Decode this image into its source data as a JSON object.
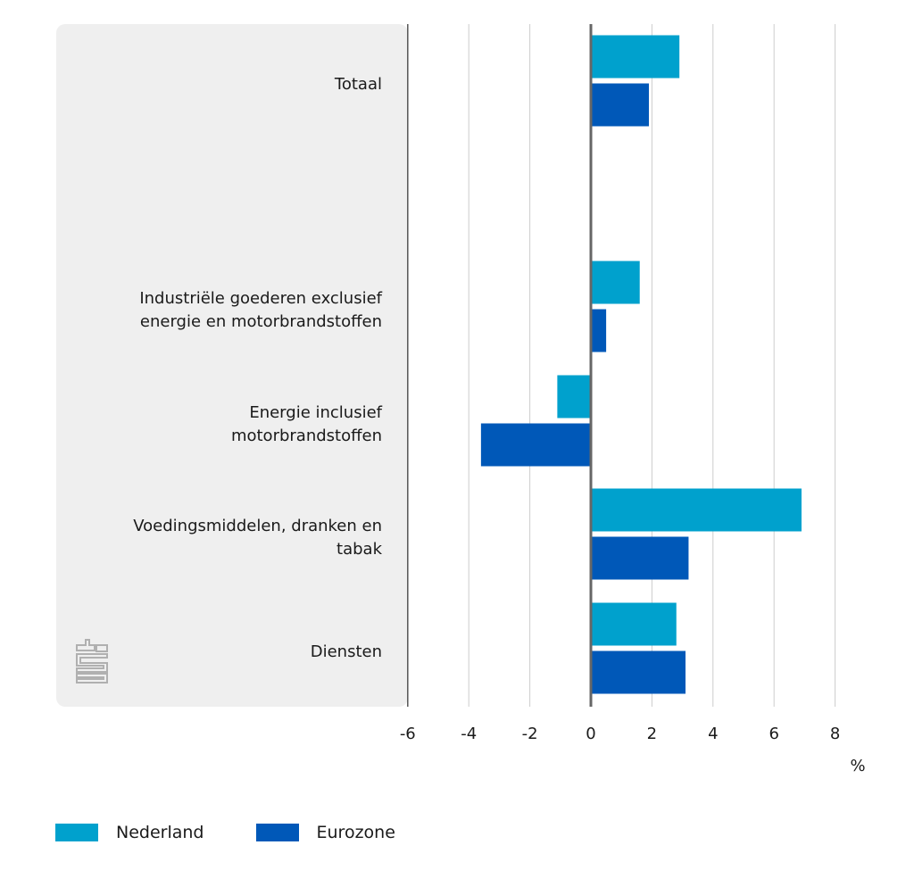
{
  "chart_data": {
    "type": "bar",
    "orientation": "horizontal",
    "categories": [
      [
        "Totaal"
      ],
      [],
      [
        "Industriële goederen exclusief",
        "energie en motorbrandstoffen"
      ],
      [
        "Energie inclusief",
        "motorbrandstoffen"
      ],
      [
        "Voedingsmiddelen, dranken en",
        "tabak"
      ],
      [
        "Diensten"
      ]
    ],
    "series": [
      {
        "name": "Nederland",
        "color": "#00a1cd",
        "values": [
          2.9,
          null,
          1.6,
          -1.1,
          6.9,
          2.8
        ]
      },
      {
        "name": "Eurozone",
        "color": "#0058b8",
        "values": [
          1.9,
          null,
          0.5,
          -3.6,
          3.2,
          3.1
        ]
      }
    ],
    "xlim": [
      -6,
      9
    ],
    "xticks": [
      -6,
      -4,
      -2,
      0,
      2,
      4,
      6,
      8
    ],
    "xlabel": "%",
    "ylabel": "",
    "title": "",
    "grid": true,
    "legend": "bottom-left",
    "logo": "cbs"
  }
}
